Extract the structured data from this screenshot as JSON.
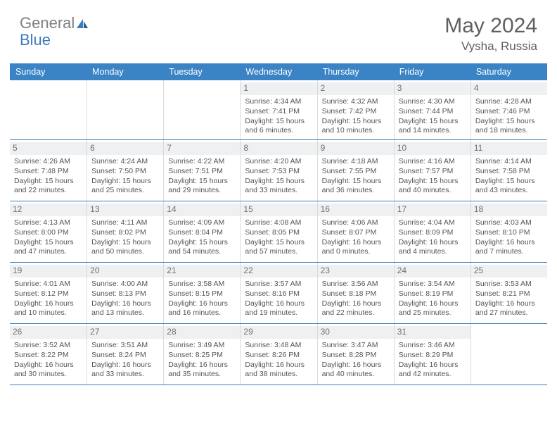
{
  "logo": {
    "text1": "General",
    "text2": "Blue"
  },
  "title": "May 2024",
  "location": "Vysha, Russia",
  "colors": {
    "header_bg": "#3a83c5",
    "header_text": "#ffffff",
    "border": "#3a7bbf",
    "daynum_bg": "#eef0f2",
    "text": "#555555",
    "logo_gray": "#808080",
    "logo_blue": "#3a7bbf"
  },
  "fonts": {
    "title_size": 30,
    "location_size": 17,
    "dow_size": 12.5,
    "daynum_size": 12,
    "body_size": 10.5
  },
  "dow": [
    "Sunday",
    "Monday",
    "Tuesday",
    "Wednesday",
    "Thursday",
    "Friday",
    "Saturday"
  ],
  "labels": {
    "sunrise": "Sunrise:",
    "sunset": "Sunset:",
    "daylight": "Daylight:"
  },
  "weeks": [
    [
      {
        "n": "",
        "empty": true
      },
      {
        "n": "",
        "empty": true
      },
      {
        "n": "",
        "empty": true
      },
      {
        "n": "1",
        "sunrise": "4:34 AM",
        "sunset": "7:41 PM",
        "daylight": "15 hours and 6 minutes."
      },
      {
        "n": "2",
        "sunrise": "4:32 AM",
        "sunset": "7:42 PM",
        "daylight": "15 hours and 10 minutes."
      },
      {
        "n": "3",
        "sunrise": "4:30 AM",
        "sunset": "7:44 PM",
        "daylight": "15 hours and 14 minutes."
      },
      {
        "n": "4",
        "sunrise": "4:28 AM",
        "sunset": "7:46 PM",
        "daylight": "15 hours and 18 minutes."
      }
    ],
    [
      {
        "n": "5",
        "sunrise": "4:26 AM",
        "sunset": "7:48 PM",
        "daylight": "15 hours and 22 minutes."
      },
      {
        "n": "6",
        "sunrise": "4:24 AM",
        "sunset": "7:50 PM",
        "daylight": "15 hours and 25 minutes."
      },
      {
        "n": "7",
        "sunrise": "4:22 AM",
        "sunset": "7:51 PM",
        "daylight": "15 hours and 29 minutes."
      },
      {
        "n": "8",
        "sunrise": "4:20 AM",
        "sunset": "7:53 PM",
        "daylight": "15 hours and 33 minutes."
      },
      {
        "n": "9",
        "sunrise": "4:18 AM",
        "sunset": "7:55 PM",
        "daylight": "15 hours and 36 minutes."
      },
      {
        "n": "10",
        "sunrise": "4:16 AM",
        "sunset": "7:57 PM",
        "daylight": "15 hours and 40 minutes."
      },
      {
        "n": "11",
        "sunrise": "4:14 AM",
        "sunset": "7:58 PM",
        "daylight": "15 hours and 43 minutes."
      }
    ],
    [
      {
        "n": "12",
        "sunrise": "4:13 AM",
        "sunset": "8:00 PM",
        "daylight": "15 hours and 47 minutes."
      },
      {
        "n": "13",
        "sunrise": "4:11 AM",
        "sunset": "8:02 PM",
        "daylight": "15 hours and 50 minutes."
      },
      {
        "n": "14",
        "sunrise": "4:09 AM",
        "sunset": "8:04 PM",
        "daylight": "15 hours and 54 minutes."
      },
      {
        "n": "15",
        "sunrise": "4:08 AM",
        "sunset": "8:05 PM",
        "daylight": "15 hours and 57 minutes."
      },
      {
        "n": "16",
        "sunrise": "4:06 AM",
        "sunset": "8:07 PM",
        "daylight": "16 hours and 0 minutes."
      },
      {
        "n": "17",
        "sunrise": "4:04 AM",
        "sunset": "8:09 PM",
        "daylight": "16 hours and 4 minutes."
      },
      {
        "n": "18",
        "sunrise": "4:03 AM",
        "sunset": "8:10 PM",
        "daylight": "16 hours and 7 minutes."
      }
    ],
    [
      {
        "n": "19",
        "sunrise": "4:01 AM",
        "sunset": "8:12 PM",
        "daylight": "16 hours and 10 minutes."
      },
      {
        "n": "20",
        "sunrise": "4:00 AM",
        "sunset": "8:13 PM",
        "daylight": "16 hours and 13 minutes."
      },
      {
        "n": "21",
        "sunrise": "3:58 AM",
        "sunset": "8:15 PM",
        "daylight": "16 hours and 16 minutes."
      },
      {
        "n": "22",
        "sunrise": "3:57 AM",
        "sunset": "8:16 PM",
        "daylight": "16 hours and 19 minutes."
      },
      {
        "n": "23",
        "sunrise": "3:56 AM",
        "sunset": "8:18 PM",
        "daylight": "16 hours and 22 minutes."
      },
      {
        "n": "24",
        "sunrise": "3:54 AM",
        "sunset": "8:19 PM",
        "daylight": "16 hours and 25 minutes."
      },
      {
        "n": "25",
        "sunrise": "3:53 AM",
        "sunset": "8:21 PM",
        "daylight": "16 hours and 27 minutes."
      }
    ],
    [
      {
        "n": "26",
        "sunrise": "3:52 AM",
        "sunset": "8:22 PM",
        "daylight": "16 hours and 30 minutes."
      },
      {
        "n": "27",
        "sunrise": "3:51 AM",
        "sunset": "8:24 PM",
        "daylight": "16 hours and 33 minutes."
      },
      {
        "n": "28",
        "sunrise": "3:49 AM",
        "sunset": "8:25 PM",
        "daylight": "16 hours and 35 minutes."
      },
      {
        "n": "29",
        "sunrise": "3:48 AM",
        "sunset": "8:26 PM",
        "daylight": "16 hours and 38 minutes."
      },
      {
        "n": "30",
        "sunrise": "3:47 AM",
        "sunset": "8:28 PM",
        "daylight": "16 hours and 40 minutes."
      },
      {
        "n": "31",
        "sunrise": "3:46 AM",
        "sunset": "8:29 PM",
        "daylight": "16 hours and 42 minutes."
      },
      {
        "n": "",
        "empty": true
      }
    ]
  ]
}
